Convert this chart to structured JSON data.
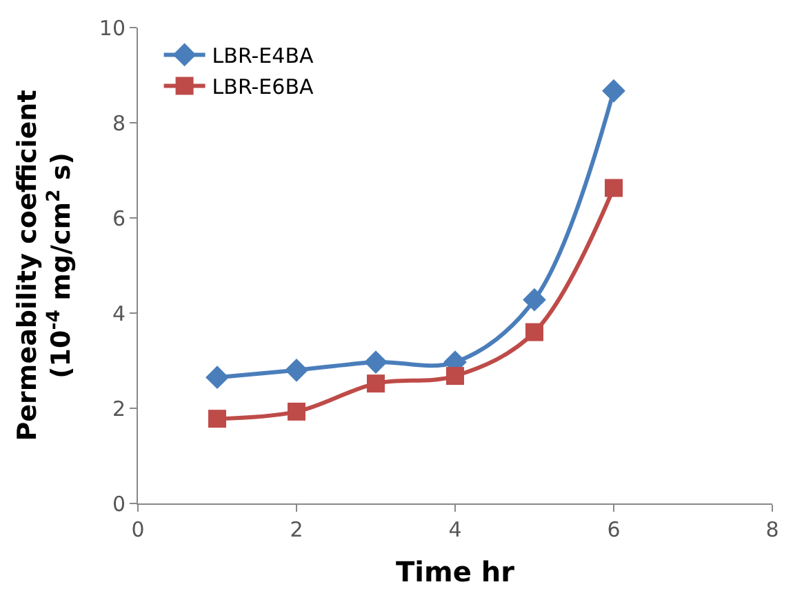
{
  "chart_data": {
    "type": "line",
    "xlabel": "Time hr",
    "ylabel": "Permeability coefficient\n(10$^{-4}$ mg/cm$^{2}$ s)",
    "x": [
      1,
      2,
      3,
      4,
      5,
      6
    ],
    "series": [
      {
        "name": "LBR-E4BA",
        "color": "#4a7ebb",
        "marker": "diamond",
        "values": [
          2.65,
          2.8,
          2.97,
          2.97,
          4.28,
          8.67
        ]
      },
      {
        "name": "LBR-E6BA",
        "color": "#be4b48",
        "marker": "square",
        "values": [
          1.78,
          1.93,
          2.52,
          2.68,
          3.6,
          6.63
        ]
      }
    ],
    "xlim": [
      0,
      8
    ],
    "xticks": [
      0,
      2,
      4,
      6,
      8
    ],
    "ylim": [
      0,
      10
    ],
    "yticks": [
      0,
      2,
      4,
      6,
      8,
      10
    ],
    "legend": "top left",
    "line_style": "solid"
  }
}
